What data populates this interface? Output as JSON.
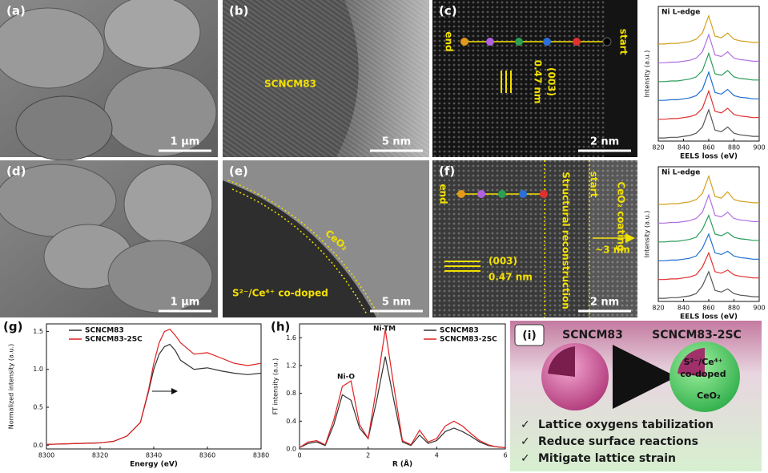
{
  "panels": {
    "a": {
      "label": "(a)",
      "scale": "1 μm"
    },
    "b": {
      "label": "(b)",
      "scale": "5 nm",
      "annotations": [
        "SCNCM83"
      ]
    },
    "c": {
      "label": "(c)",
      "scale": "2 nm",
      "annotations": [
        "end",
        "start",
        "(003)",
        "0.47 nm"
      ]
    },
    "d": {
      "label": "(d)",
      "scale": "1 μm"
    },
    "e": {
      "label": "(e)",
      "scale": "5 nm",
      "annotations": [
        "CeO₂",
        "S²⁻/Ce⁴⁺ co-doped"
      ]
    },
    "f": {
      "label": "(f)",
      "scale": "2 nm",
      "annotations": [
        "end",
        "start",
        "Structural reconstruction",
        "CeO₂ coating",
        "~3 nm",
        "(003)",
        "0.47 nm"
      ]
    }
  },
  "chart_data": [
    {
      "type": "line",
      "annotations": [
        "Ni L-edge"
      ],
      "xlabel": "EELS loss (eV)",
      "ylabel": "Intensity (a.u.)",
      "x": [
        820,
        825,
        830,
        835,
        840,
        845,
        850,
        855,
        860,
        865,
        870,
        875,
        880,
        885,
        890,
        895,
        900
      ],
      "xlim": [
        820,
        900
      ],
      "xticks": [
        820,
        840,
        860,
        880,
        900
      ],
      "ylim": [
        0,
        4.3
      ],
      "series": [
        {
          "color": "#555555",
          "values": [
            0.1,
            0.1,
            0.12,
            0.12,
            0.15,
            0.18,
            0.25,
            0.45,
            1.0,
            0.35,
            0.3,
            0.45,
            0.25,
            0.2,
            0.18,
            0.15,
            0.15
          ]
        },
        {
          "color": "#e03030",
          "values": [
            0.7,
            0.7,
            0.72,
            0.72,
            0.75,
            0.78,
            0.85,
            1.05,
            1.6,
            0.95,
            0.9,
            1.05,
            0.85,
            0.8,
            0.78,
            0.75,
            0.75
          ]
        },
        {
          "color": "#1f6fd0",
          "values": [
            1.3,
            1.3,
            1.32,
            1.32,
            1.35,
            1.38,
            1.45,
            1.65,
            2.2,
            1.55,
            1.5,
            1.65,
            1.45,
            1.4,
            1.38,
            1.35,
            1.35
          ]
        },
        {
          "color": "#2a9d5a",
          "values": [
            1.9,
            1.9,
            1.92,
            1.92,
            1.95,
            1.98,
            2.05,
            2.25,
            2.8,
            2.15,
            2.1,
            2.25,
            2.05,
            2.0,
            1.98,
            1.95,
            1.95
          ]
        },
        {
          "color": "#b070e0",
          "values": [
            2.5,
            2.5,
            2.52,
            2.52,
            2.55,
            2.58,
            2.65,
            2.85,
            3.4,
            2.75,
            2.7,
            2.85,
            2.65,
            2.6,
            2.58,
            2.55,
            2.55
          ]
        },
        {
          "color": "#d4a020",
          "values": [
            3.1,
            3.1,
            3.12,
            3.12,
            3.15,
            3.18,
            3.25,
            3.45,
            4.0,
            3.35,
            3.3,
            3.45,
            3.25,
            3.2,
            3.18,
            3.15,
            3.15
          ]
        }
      ]
    },
    {
      "type": "line",
      "annotations": [
        "Ni L-edge"
      ],
      "xlabel": "EELS loss (eV)",
      "ylabel": "Intensity (a.u.)",
      "x": [
        820,
        825,
        830,
        835,
        840,
        845,
        850,
        855,
        860,
        865,
        870,
        875,
        880,
        885,
        890,
        895,
        900
      ],
      "xlim": [
        820,
        900
      ],
      "xticks": [
        820,
        840,
        860,
        880,
        900
      ],
      "ylim": [
        0,
        4.3
      ],
      "series": [
        {
          "color": "#555555",
          "values": [
            0.1,
            0.1,
            0.12,
            0.12,
            0.15,
            0.18,
            0.25,
            0.5,
            0.95,
            0.35,
            0.3,
            0.4,
            0.25,
            0.2,
            0.18,
            0.15,
            0.15
          ]
        },
        {
          "color": "#e03030",
          "values": [
            0.7,
            0.7,
            0.72,
            0.72,
            0.75,
            0.78,
            0.85,
            1.1,
            1.55,
            0.95,
            0.9,
            1.0,
            0.85,
            0.8,
            0.78,
            0.75,
            0.75
          ]
        },
        {
          "color": "#1f6fd0",
          "values": [
            1.3,
            1.3,
            1.32,
            1.32,
            1.35,
            1.38,
            1.45,
            1.7,
            2.15,
            1.55,
            1.5,
            1.6,
            1.45,
            1.4,
            1.38,
            1.35,
            1.35
          ]
        },
        {
          "color": "#2a9d5a",
          "values": [
            1.9,
            1.9,
            1.92,
            1.92,
            1.95,
            1.98,
            2.05,
            2.3,
            2.75,
            2.15,
            2.1,
            2.2,
            2.05,
            2.0,
            1.98,
            1.95,
            1.95
          ]
        },
        {
          "color": "#b070e0",
          "values": [
            2.5,
            2.5,
            2.52,
            2.52,
            2.55,
            2.58,
            2.65,
            2.85,
            3.4,
            2.75,
            2.7,
            2.85,
            2.65,
            2.6,
            2.58,
            2.55,
            2.55
          ]
        },
        {
          "color": "#d4a020",
          "values": [
            3.1,
            3.1,
            3.12,
            3.12,
            3.15,
            3.18,
            3.25,
            3.45,
            4.0,
            3.35,
            3.3,
            3.5,
            3.25,
            3.2,
            3.18,
            3.15,
            3.15
          ]
        }
      ]
    },
    {
      "type": "line",
      "label": "(g)",
      "xlabel": "Energy (eV)",
      "ylabel": "Normalized intensity (a.u.)",
      "legend": "upper left",
      "x": [
        8300,
        8310,
        8320,
        8325,
        8330,
        8335,
        8338,
        8340,
        8342,
        8344,
        8346,
        8348,
        8350,
        8355,
        8360,
        8365,
        8370,
        8375,
        8380
      ],
      "xlim": [
        8300,
        8380
      ],
      "xticks": [
        8300,
        8320,
        8340,
        8360,
        8380
      ],
      "ylim": [
        -0.05,
        1.6
      ],
      "yticks": [
        {
          "value": 0,
          "label": "0.0"
        },
        0.5,
        {
          "value": 1,
          "label": "1.0"
        },
        1.5
      ],
      "series": [
        {
          "name": "SCNCM83",
          "color": "#333333",
          "values": [
            0.01,
            0.02,
            0.03,
            0.05,
            0.12,
            0.3,
            0.7,
            1.0,
            1.2,
            1.3,
            1.33,
            1.25,
            1.12,
            1.0,
            1.02,
            0.98,
            0.95,
            0.93,
            0.95
          ]
        },
        {
          "name": "SCNCM83-2SC",
          "color": "#e02020",
          "values": [
            0.01,
            0.02,
            0.03,
            0.05,
            0.12,
            0.3,
            0.72,
            1.08,
            1.35,
            1.5,
            1.53,
            1.45,
            1.35,
            1.2,
            1.22,
            1.15,
            1.08,
            1.05,
            1.08
          ]
        }
      ]
    },
    {
      "type": "line",
      "label": "(h)",
      "xlabel": "R (Å)",
      "ylabel": "FT intensity (a.u.)",
      "legend": "upper right",
      "annotations": [
        "Ni-O",
        "Ni-TM"
      ],
      "x": [
        0,
        0.25,
        0.5,
        0.75,
        1,
        1.25,
        1.5,
        1.75,
        2,
        2.25,
        2.5,
        2.75,
        3,
        3.25,
        3.5,
        3.75,
        4,
        4.25,
        4.5,
        4.75,
        5,
        5.25,
        5.5,
        5.75,
        6
      ],
      "xlim": [
        0,
        6
      ],
      "xticks": [
        0,
        2,
        4,
        6
      ],
      "ylim": [
        0,
        1.8
      ],
      "yticks": [
        {
          "value": 0,
          "label": "0.0"
        },
        0.4,
        0.8,
        1.2,
        1.6
      ],
      "series": [
        {
          "name": "SCNCM83",
          "color": "#333333",
          "values": [
            0.02,
            0.08,
            0.1,
            0.05,
            0.35,
            0.78,
            0.7,
            0.3,
            0.15,
            0.7,
            1.33,
            0.7,
            0.1,
            0.05,
            0.2,
            0.08,
            0.12,
            0.25,
            0.3,
            0.25,
            0.18,
            0.1,
            0.05,
            0.03,
            0.02
          ]
        },
        {
          "name": "SCNCM83-2SC",
          "color": "#e02020",
          "values": [
            0.02,
            0.1,
            0.12,
            0.06,
            0.42,
            0.9,
            0.98,
            0.35,
            0.15,
            0.9,
            1.72,
            0.9,
            0.12,
            0.06,
            0.27,
            0.1,
            0.15,
            0.33,
            0.4,
            0.33,
            0.22,
            0.12,
            0.06,
            0.03,
            0.02
          ]
        }
      ]
    }
  ],
  "schematic": {
    "label": "(i)",
    "titles": [
      "SCNCM83",
      "SCNCM83-2SC"
    ],
    "doped": [
      "S²⁻/Ce⁴⁺",
      "co-doped"
    ],
    "coating": "CeO₂",
    "bullets": [
      "Lattice oxygens tabilization",
      "Reduce surface reactions",
      "Mitigate lattice strain"
    ]
  }
}
